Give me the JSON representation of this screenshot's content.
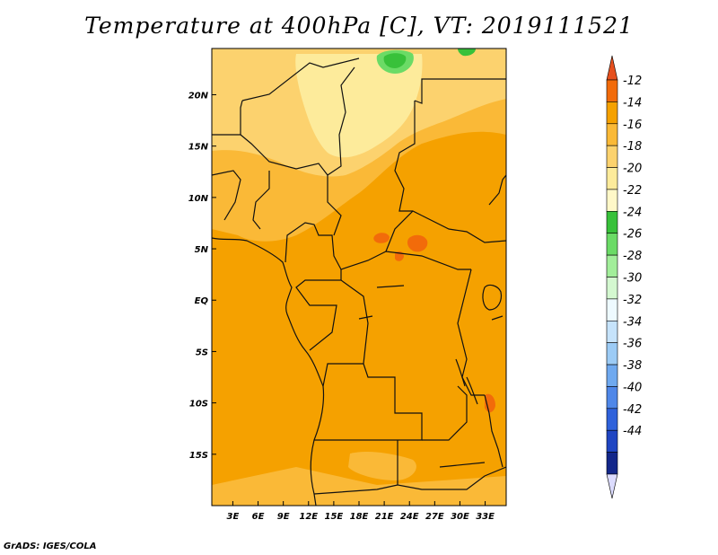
{
  "title": "Temperature at 400hPa [C], VT: 2019111521",
  "credit": "GrADS: IGES/COLA",
  "map": {
    "variable": "Temperature at 400hPa",
    "units": "C",
    "valid_time": "2019111521",
    "lon_range": [
      0.5,
      35.5
    ],
    "lat_range": [
      -20,
      24.5
    ],
    "lon_ticks": [
      {
        "value": 3,
        "label": "3E"
      },
      {
        "value": 6,
        "label": "6E"
      },
      {
        "value": 9,
        "label": "9E"
      },
      {
        "value": 12,
        "label": "12E"
      },
      {
        "value": 15,
        "label": "15E"
      },
      {
        "value": 18,
        "label": "18E"
      },
      {
        "value": 21,
        "label": "21E"
      },
      {
        "value": 24,
        "label": "24E"
      },
      {
        "value": 27,
        "label": "27E"
      },
      {
        "value": 30,
        "label": "30E"
      },
      {
        "value": 33,
        "label": "33E"
      }
    ],
    "lat_ticks": [
      {
        "value": 20,
        "label": "20N"
      },
      {
        "value": 15,
        "label": "15N"
      },
      {
        "value": 10,
        "label": "10N"
      },
      {
        "value": 5,
        "label": "5N"
      },
      {
        "value": 0,
        "label": "EQ"
      },
      {
        "value": -5,
        "label": "5S"
      },
      {
        "value": -10,
        "label": "10S"
      },
      {
        "value": -15,
        "label": "15S"
      }
    ],
    "dominant_color": "#f5a100"
  },
  "colorbar": {
    "labels": [
      "-12",
      "-14",
      "-16",
      "-18",
      "-20",
      "-22",
      "-24",
      "-26",
      "-28",
      "-30",
      "-32",
      "-34",
      "-36",
      "-38",
      "-40",
      "-42",
      "-44"
    ],
    "bins": [
      {
        "color": "#e6501e"
      },
      {
        "color": "#f26b0a"
      },
      {
        "color": "#f5a100"
      },
      {
        "color": "#fab937"
      },
      {
        "color": "#fcd26e"
      },
      {
        "color": "#fdeb9b"
      },
      {
        "color": "#fff8c8"
      },
      {
        "color": "#38c13a"
      },
      {
        "color": "#6bdb66"
      },
      {
        "color": "#a2ee9a"
      },
      {
        "color": "#d4f8d0"
      },
      {
        "color": "#eefaff"
      },
      {
        "color": "#c6e3fb"
      },
      {
        "color": "#9ccbf5"
      },
      {
        "color": "#6fa9ef"
      },
      {
        "color": "#4f87e8"
      },
      {
        "color": "#2f62db"
      },
      {
        "color": "#1f45c2"
      },
      {
        "color": "#13278a"
      },
      {
        "color": "#dcdcff"
      }
    ]
  }
}
